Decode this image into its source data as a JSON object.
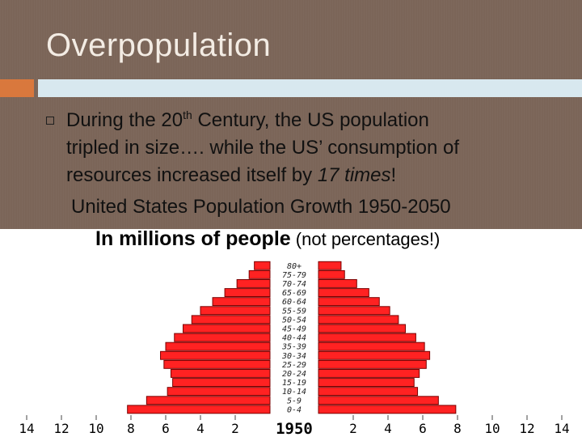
{
  "slide": {
    "title": "Overpopulation",
    "bullet_line1_pre": "During the 20",
    "bullet_line1_sup": "th",
    "bullet_line1_post": " Century, the US population",
    "bullet_line2": "tripled in size…. while the US’ consumption of",
    "bullet_line3_pre": "resources increased itself by ",
    "bullet_line3_emph": "17 times",
    "bullet_line3_post": "!",
    "subtitle": "United States Population Growth 1950-2050",
    "units_bold": "In millions of people",
    "units_normal": " (not percentages!)"
  },
  "colors": {
    "background": "#7b6558",
    "accent_orange": "#d9783d",
    "accent_blue": "#d8e8ef",
    "bar_fill": "#ff2222",
    "bar_stroke": "#7a0000"
  },
  "chart_data": {
    "type": "bar",
    "orientation": "horizontal-population-pyramid",
    "year_label": "1950",
    "age_groups": [
      "0-4",
      "5-9",
      "10-14",
      "15-19",
      "20-24",
      "25-29",
      "30-34",
      "35-39",
      "40-44",
      "45-49",
      "50-54",
      "55-59",
      "60-64",
      "65-69",
      "70-74",
      "75-79",
      "80+"
    ],
    "left_values": [
      8.2,
      7.1,
      5.9,
      5.6,
      5.7,
      6.1,
      6.3,
      6.0,
      5.5,
      5.0,
      4.5,
      4.0,
      3.3,
      2.6,
      1.9,
      1.2,
      0.9
    ],
    "right_values": [
      7.9,
      6.9,
      5.7,
      5.5,
      5.8,
      6.2,
      6.4,
      6.1,
      5.6,
      5.0,
      4.6,
      4.1,
      3.5,
      2.9,
      2.2,
      1.5,
      1.3
    ],
    "x_ticks_left": [
      "14",
      "12",
      "10",
      "8",
      "6",
      "4",
      "2"
    ],
    "x_ticks_right": [
      "2",
      "4",
      "6",
      "8",
      "10",
      "12",
      "14"
    ],
    "xlim": [
      0,
      14
    ],
    "grid": true
  }
}
